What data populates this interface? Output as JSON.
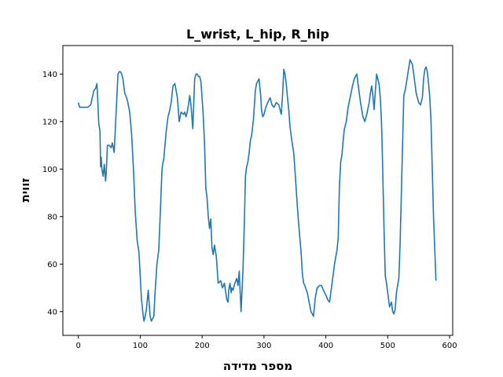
{
  "chart_data": {
    "type": "line",
    "title": "L_wrist, L_hip, R_hip",
    "xlabel": "מספר מדידה",
    "ylabel": "זווית",
    "xlim": [
      -25,
      605
    ],
    "ylim": [
      30,
      152
    ],
    "xticks": [
      0,
      100,
      200,
      300,
      400,
      500,
      600
    ],
    "yticks": [
      40,
      60,
      80,
      100,
      120,
      140
    ],
    "grid": false,
    "series": [
      {
        "color": "#1f77b4",
        "x": [
          0,
          2,
          5,
          10,
          15,
          20,
          25,
          28,
          30,
          31,
          33,
          35,
          36,
          37,
          38,
          40,
          42,
          44,
          45,
          47,
          50,
          53,
          55,
          58,
          60,
          62,
          64,
          66,
          68,
          70,
          72,
          75,
          78,
          80,
          83,
          86,
          89,
          92,
          95,
          98,
          100,
          101,
          102,
          103,
          104,
          106,
          108,
          110,
          113,
          116,
          118,
          120,
          122,
          124,
          127,
          130,
          133,
          135,
          136,
          138,
          140,
          142,
          145,
          147,
          150,
          153,
          156,
          160,
          163,
          166,
          170,
          172,
          174,
          176,
          178,
          180,
          182,
          185,
          188,
          190,
          192,
          194,
          196,
          198,
          200,
          202,
          204,
          205,
          206,
          208,
          210,
          212,
          214,
          216,
          218,
          220,
          223,
          226,
          230,
          233,
          236,
          240,
          242,
          243,
          245,
          247,
          248,
          250,
          253,
          256,
          258,
          260,
          263,
          266,
          268,
          270,
          272,
          274,
          276,
          278,
          280,
          283,
          286,
          288,
          290,
          292,
          294,
          295,
          296,
          298,
          300,
          303,
          306,
          310,
          313,
          316,
          320,
          324,
          328,
          330,
          332,
          334,
          336,
          338,
          340,
          342,
          345,
          348,
          350,
          352,
          354,
          356,
          358,
          360,
          362,
          364,
          366,
          370,
          373,
          376,
          380,
          383,
          386,
          390,
          393,
          396,
          400,
          403,
          406,
          408,
          410,
          412,
          414,
          416,
          418,
          420,
          422,
          424,
          426,
          428,
          430,
          433,
          436,
          440,
          443,
          446,
          450,
          453,
          456,
          460,
          463,
          466,
          470,
          472,
          474,
          476,
          478,
          480,
          482,
          484,
          486,
          488,
          490,
          492,
          494,
          496,
          498,
          500,
          503,
          506,
          508,
          510,
          512,
          514,
          516,
          518,
          520,
          522,
          524,
          526,
          528,
          530,
          533,
          536,
          540,
          543,
          546,
          550,
          553,
          556,
          558,
          560,
          562,
          564,
          566,
          568,
          570,
          574,
          578
        ],
        "y": [
          128,
          126,
          126,
          126,
          126,
          127,
          133,
          134,
          136,
          131,
          119,
          116,
          101,
          105,
          100,
          97,
          102,
          95,
          98,
          110,
          110,
          109,
          111,
          107,
          118,
          129,
          140,
          141,
          141,
          140,
          138,
          132,
          130,
          128,
          124,
          115,
          100,
          82,
          70,
          65,
          55,
          50,
          45,
          43,
          40,
          36,
          38,
          41,
          49,
          38,
          36,
          37,
          38,
          48,
          60,
          66,
          85,
          99,
          102,
          104,
          110,
          116,
          122,
          124,
          128,
          135,
          136,
          130,
          120,
          124,
          123,
          124,
          122,
          124,
          127,
          131,
          127,
          117,
          138,
          140,
          140,
          139,
          139,
          137,
          130,
          122,
          110,
          101,
          92,
          88,
          80,
          75,
          79,
          67,
          64,
          68,
          63,
          52,
          53,
          50,
          52,
          45,
          44,
          49,
          52,
          48,
          50,
          49,
          52,
          54,
          51,
          57,
          40,
          57,
          75,
          97,
          101,
          103,
          107,
          112,
          114,
          121,
          133,
          136,
          137,
          138,
          133,
          130,
          125,
          122,
          123,
          126,
          128,
          130,
          127,
          126,
          128,
          127,
          123,
          131,
          142,
          140,
          136,
          130,
          125,
          118,
          112,
          107,
          100,
          92,
          84,
          77,
          71,
          65,
          56,
          52,
          51,
          48,
          44,
          40,
          38,
          46,
          50,
          51,
          51,
          49,
          47,
          45,
          44,
          48,
          52,
          56,
          60,
          63,
          66,
          71,
          93,
          103,
          106,
          112,
          117,
          120,
          126,
          131,
          135,
          138,
          140,
          134,
          128,
          122,
          120,
          123,
          128,
          132,
          135,
          131,
          125,
          133,
          140,
          138,
          136,
          130,
          119,
          99,
          75,
          55,
          52,
          48,
          42,
          44,
          40,
          39,
          41,
          48,
          51,
          54,
          69,
          90,
          110,
          131,
          133,
          136,
          141,
          146,
          144,
          138,
          132,
          128,
          127,
          130,
          138,
          142,
          143,
          141,
          136,
          130,
          120,
          80,
          53
        ]
      }
    ]
  }
}
